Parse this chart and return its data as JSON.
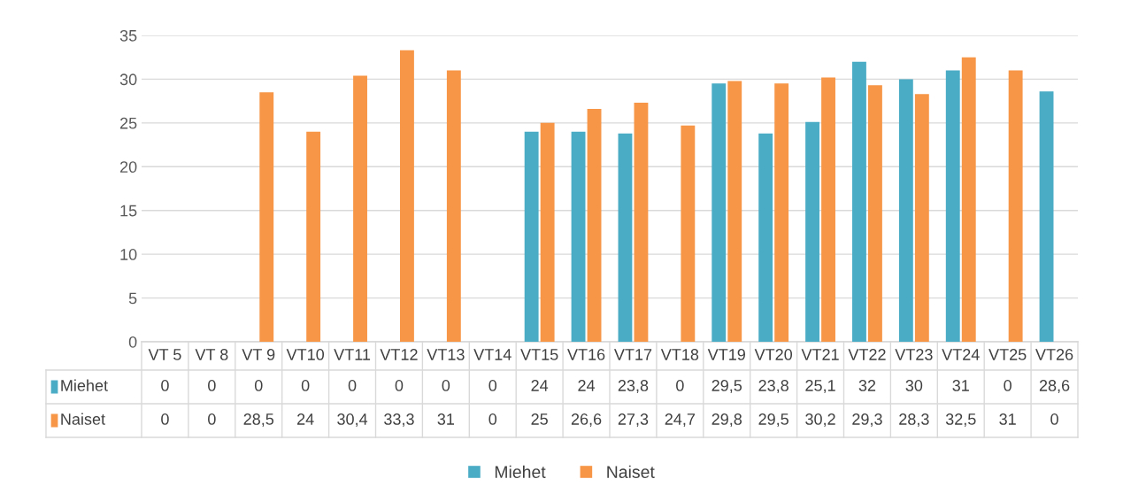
{
  "chart_data": {
    "type": "bar",
    "categories": [
      "VT 5",
      "VT 8",
      "VT 9",
      "VT10",
      "VT11",
      "VT12",
      "VT13",
      "VT14",
      "VT15",
      "VT16",
      "VT17",
      "VT18",
      "VT19",
      "VT20",
      "VT21",
      "VT22",
      "VT23",
      "VT24",
      "VT25",
      "VT26"
    ],
    "series": [
      {
        "name": "Miehet",
        "color": "#4bacc6",
        "values": [
          0,
          0,
          0,
          0,
          0,
          0,
          0,
          0,
          24,
          24,
          23.8,
          0,
          29.5,
          23.8,
          25.1,
          32,
          30,
          31,
          0,
          28.6
        ],
        "value_labels": [
          "0",
          "0",
          "0",
          "0",
          "0",
          "0",
          "0",
          "0",
          "24",
          "24",
          "23,8",
          "0",
          "29,5",
          "23,8",
          "25,1",
          "32",
          "30",
          "31",
          "0",
          "28,6"
        ]
      },
      {
        "name": "Naiset",
        "color": "#f79646",
        "values": [
          0,
          0,
          28.5,
          24,
          30.4,
          33.3,
          31,
          0,
          25,
          26.6,
          27.3,
          24.7,
          29.8,
          29.5,
          30.2,
          29.3,
          28.3,
          32.5,
          31,
          0
        ],
        "value_labels": [
          "0",
          "0",
          "28,5",
          "24",
          "30,4",
          "33,3",
          "31",
          "0",
          "25",
          "26,6",
          "27,3",
          "24,7",
          "29,8",
          "29,5",
          "30,2",
          "29,3",
          "28,3",
          "32,5",
          "31",
          "0"
        ]
      }
    ],
    "ylim": [
      0,
      35
    ],
    "yticks": [
      0,
      5,
      10,
      15,
      20,
      25,
      30,
      35
    ],
    "grid": "y",
    "legend": "bottom"
  }
}
